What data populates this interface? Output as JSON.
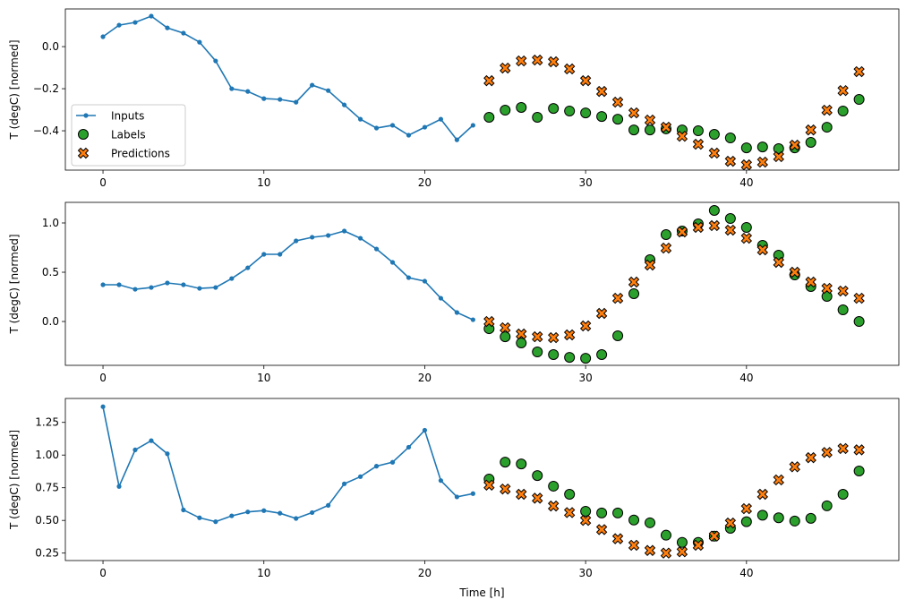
{
  "chart_data": [
    {
      "type": "line",
      "ylabel": "T (degC) [normed]",
      "xlabel": "",
      "xlim": [
        -2.34,
        49.47
      ],
      "ylim": [
        -0.587,
        0.179
      ],
      "xticks": [
        0,
        10,
        20,
        30,
        40
      ],
      "yticks": [
        0.0,
        -0.2,
        -0.4
      ],
      "ytick_labels": [
        "0.0",
        "−0.2",
        "−0.4"
      ],
      "legend": {
        "placement": "lower-left",
        "entries": [
          "Inputs",
          "Labels",
          "Predictions"
        ]
      },
      "inputs": {
        "x_start": 0,
        "values": [
          0.047,
          0.102,
          0.115,
          0.145,
          0.089,
          0.064,
          0.021,
          -0.068,
          -0.2,
          -0.213,
          -0.247,
          -0.251,
          -0.264,
          -0.183,
          -0.209,
          -0.277,
          -0.345,
          -0.387,
          -0.374,
          -0.421,
          -0.383,
          -0.345,
          -0.443,
          -0.374
        ]
      },
      "labels": {
        "x_start": 24,
        "values": [
          -0.336,
          -0.302,
          -0.289,
          -0.336,
          -0.294,
          -0.306,
          -0.315,
          -0.332,
          -0.345,
          -0.396,
          -0.396,
          -0.391,
          -0.396,
          -0.4,
          -0.417,
          -0.434,
          -0.481,
          -0.477,
          -0.485,
          -0.481,
          -0.455,
          -0.383,
          -0.306,
          -0.251
        ]
      },
      "predictions": {
        "x_start": 24,
        "values": [
          -0.162,
          -0.102,
          -0.068,
          -0.064,
          -0.072,
          -0.106,
          -0.162,
          -0.213,
          -0.264,
          -0.315,
          -0.349,
          -0.383,
          -0.426,
          -0.464,
          -0.506,
          -0.545,
          -0.562,
          -0.549,
          -0.523,
          -0.468,
          -0.396,
          -0.302,
          -0.209,
          -0.119
        ]
      }
    },
    {
      "type": "line",
      "ylabel": "T (degC) [normed]",
      "xlabel": "",
      "xlim": [
        -2.34,
        49.47
      ],
      "ylim": [
        -0.445,
        1.209
      ],
      "xticks": [
        0,
        10,
        20,
        30,
        40
      ],
      "yticks": [
        0.0,
        0.5,
        1.0
      ],
      "ytick_labels": [
        "0.0",
        "0.5",
        "1.0"
      ],
      "inputs": {
        "x_start": 0,
        "values": [
          0.373,
          0.373,
          0.327,
          0.345,
          0.391,
          0.373,
          0.336,
          0.345,
          0.436,
          0.545,
          0.682,
          0.682,
          0.818,
          0.855,
          0.873,
          0.918,
          0.845,
          0.736,
          0.6,
          0.445,
          0.409,
          0.236,
          0.091,
          0.018
        ]
      },
      "labels": {
        "x_start": 24,
        "values": [
          -0.073,
          -0.155,
          -0.218,
          -0.309,
          -0.336,
          -0.364,
          -0.373,
          -0.336,
          -0.145,
          0.282,
          0.627,
          0.882,
          0.918,
          0.991,
          1.127,
          1.045,
          0.955,
          0.773,
          0.673,
          0.473,
          0.355,
          0.255,
          0.118,
          0.0
        ]
      },
      "predictions": {
        "x_start": 24,
        "values": [
          0.0,
          -0.064,
          -0.127,
          -0.155,
          -0.164,
          -0.136,
          -0.045,
          0.082,
          0.236,
          0.4,
          0.573,
          0.745,
          0.909,
          0.955,
          0.973,
          0.927,
          0.845,
          0.727,
          0.6,
          0.5,
          0.4,
          0.336,
          0.309,
          0.236
        ]
      }
    },
    {
      "type": "line",
      "ylabel": "T (degC) [normed]",
      "xlabel": "Time [h]",
      "xlim": [
        -2.34,
        49.47
      ],
      "ylim": [
        0.193,
        1.433
      ],
      "xticks": [
        0,
        10,
        20,
        30,
        40
      ],
      "yticks": [
        0.25,
        0.5,
        0.75,
        1.0,
        1.25
      ],
      "ytick_labels": [
        "0.25",
        "0.50",
        "0.75",
        "1.00",
        "1.25"
      ],
      "inputs": {
        "x_start": 0,
        "values": [
          1.37,
          0.76,
          1.04,
          1.11,
          1.01,
          0.58,
          0.52,
          0.49,
          0.535,
          0.565,
          0.575,
          0.555,
          0.515,
          0.56,
          0.615,
          0.78,
          0.835,
          0.915,
          0.945,
          1.06,
          1.19,
          0.805,
          0.68,
          0.705
        ]
      },
      "labels": {
        "x_start": 24,
        "values": [
          0.816,
          0.946,
          0.932,
          0.843,
          0.762,
          0.7,
          0.57,
          0.557,
          0.557,
          0.503,
          0.482,
          0.387,
          0.332,
          0.332,
          0.38,
          0.44,
          0.49,
          0.54,
          0.52,
          0.495,
          0.516,
          0.612,
          0.7,
          0.878
        ]
      },
      "predictions": {
        "x_start": 24,
        "values": [
          0.77,
          0.74,
          0.7,
          0.67,
          0.61,
          0.56,
          0.5,
          0.43,
          0.36,
          0.31,
          0.27,
          0.25,
          0.26,
          0.31,
          0.38,
          0.48,
          0.59,
          0.7,
          0.81,
          0.91,
          0.98,
          1.02,
          1.05,
          1.04
        ]
      }
    }
  ],
  "colors": {
    "inputs": "#1f77b4",
    "labels": "#2ca02c",
    "predictions": "#ff7f0e",
    "marker_edge": "#000000"
  }
}
